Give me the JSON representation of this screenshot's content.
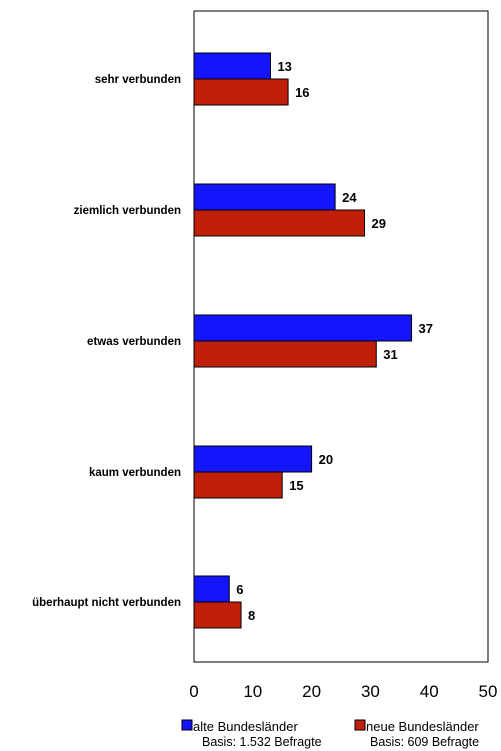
{
  "chart_data": {
    "type": "bar",
    "orientation": "horizontal",
    "categories": [
      "sehr verbunden",
      "ziemlich verbunden",
      "etwas verbunden",
      "kaum verbunden",
      "überhaupt nicht verbunden"
    ],
    "series": [
      {
        "name": "alte Bundesländer",
        "basis": "Basis: 1.532 Befragte",
        "color": "#1414ff",
        "values": [
          13,
          24,
          37,
          20,
          6
        ]
      },
      {
        "name": "neue Bundesländer",
        "basis": "Basis: 609 Befragte",
        "color": "#c0200a",
        "values": [
          16,
          29,
          31,
          15,
          8
        ]
      }
    ],
    "xlim": [
      0,
      50
    ],
    "xticks": [
      "0",
      "10",
      "20",
      "30",
      "40",
      "50"
    ],
    "grid": false,
    "legend": "bottom"
  }
}
